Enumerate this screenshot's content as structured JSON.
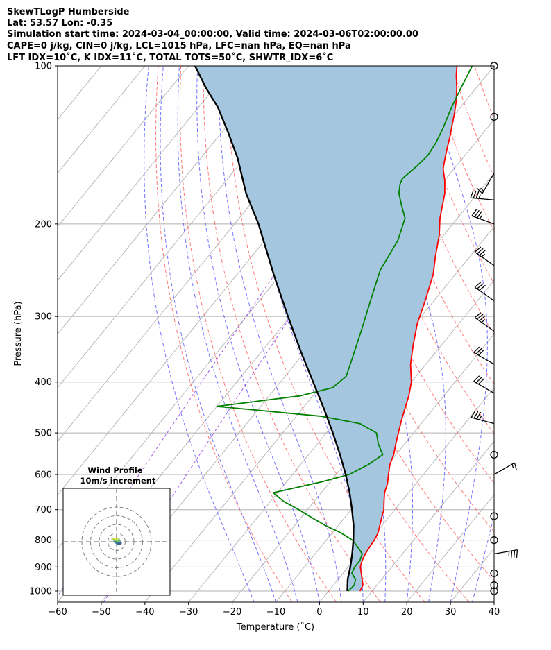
{
  "chart_data": {
    "type": "line",
    "title_lines": [
      "SkewTLogP Humberside",
      "Lat: 53.57   Lon: -0.35",
      "Simulation start time: 2024-03-04_00:00:00, Valid time: 2024-03-06T02:00:00.00",
      "CAPE=0 j/kg, CIN=0 j/kg, LCL=1015 hPa, LFC=nan hPa, EQ=nan hPa",
      "LFT IDX=10˚C, K IDX=11˚C, TOTAL TOTS=50˚C, SHWTR_IDX=6˚C"
    ],
    "xlabel": "Temperature (˚C)",
    "ylabel": "Pressure (hPa)",
    "xlim": [
      -60,
      40
    ],
    "ylim": [
      1050,
      100
    ],
    "x_ticks": [
      -60,
      -50,
      -40,
      -30,
      -20,
      -10,
      0,
      10,
      20,
      30,
      40
    ],
    "y_ticks": [
      100,
      200,
      300,
      400,
      500,
      600,
      700,
      800,
      900,
      1000
    ],
    "skew": 1.0,
    "grid": true,
    "series": [
      {
        "name": "Temperature",
        "color": "#ff0000",
        "points": [
          [
            7.2,
            1000
          ],
          [
            6.8,
            975
          ],
          [
            5.5,
            950
          ],
          [
            4.2,
            925
          ],
          [
            2.8,
            900
          ],
          [
            2.0,
            875
          ],
          [
            1.5,
            850
          ],
          [
            1.2,
            825
          ],
          [
            1.0,
            800
          ],
          [
            0.5,
            775
          ],
          [
            -0.5,
            750
          ],
          [
            -1.5,
            725
          ],
          [
            -2.5,
            700
          ],
          [
            -4.0,
            675
          ],
          [
            -5.5,
            650
          ],
          [
            -6.5,
            625
          ],
          [
            -8.0,
            600
          ],
          [
            -9.5,
            575
          ],
          [
            -10.5,
            550
          ],
          [
            -12.0,
            525
          ],
          [
            -13.5,
            500
          ],
          [
            -15.0,
            475
          ],
          [
            -16.5,
            450
          ],
          [
            -18.0,
            425
          ],
          [
            -20.0,
            400
          ],
          [
            -23.5,
            370
          ],
          [
            -26.5,
            340
          ],
          [
            -29.5,
            310
          ],
          [
            -32.0,
            280
          ],
          [
            -35.0,
            250
          ],
          [
            -38.0,
            230
          ],
          [
            -41.0,
            210
          ],
          [
            -44.0,
            195
          ],
          [
            -47.5,
            175
          ],
          [
            -50.0,
            165
          ],
          [
            -52.5,
            157
          ],
          [
            -54.0,
            150
          ],
          [
            -55.5,
            143
          ],
          [
            -57.0,
            136
          ],
          [
            -58.5,
            130
          ],
          [
            -60.0,
            124
          ],
          [
            -62.0,
            117
          ],
          [
            -64.5,
            110
          ],
          [
            -67.0,
            104
          ],
          [
            -68.5,
            100
          ]
        ]
      },
      {
        "name": "Dewpoint",
        "color": "#008000",
        "points": [
          [
            4.5,
            1000
          ],
          [
            4.8,
            975
          ],
          [
            4.0,
            950
          ],
          [
            2.0,
            925
          ],
          [
            1.5,
            900
          ],
          [
            1.5,
            875
          ],
          [
            0.8,
            850
          ],
          [
            -1.5,
            825
          ],
          [
            -4.0,
            800
          ],
          [
            -8.0,
            775
          ],
          [
            -13.0,
            750
          ],
          [
            -17.5,
            725
          ],
          [
            -22.0,
            700
          ],
          [
            -27.0,
            675
          ],
          [
            -31.0,
            650
          ],
          [
            -22.0,
            620
          ],
          [
            -17.0,
            600
          ],
          [
            -14.5,
            575
          ],
          [
            -13.0,
            550
          ],
          [
            -16.0,
            525
          ],
          [
            -18.5,
            500
          ],
          [
            -24.0,
            480
          ],
          [
            -34.0,
            465
          ],
          [
            -60.0,
            445
          ],
          [
            -43.0,
            425
          ],
          [
            -37.0,
            410
          ],
          [
            -36.0,
            390
          ],
          [
            -38.0,
            360
          ],
          [
            -41.0,
            320
          ],
          [
            -45.0,
            275
          ],
          [
            -48.0,
            245
          ],
          [
            -49.5,
            215
          ],
          [
            -52.0,
            195
          ],
          [
            -55.0,
            185
          ],
          [
            -58.0,
            175
          ],
          [
            -59.5,
            168
          ],
          [
            -60.0,
            164
          ],
          [
            -59.0,
            155
          ],
          [
            -58.5,
            148
          ],
          [
            -59.0,
            140
          ],
          [
            -60.0,
            132
          ],
          [
            -62.0,
            120
          ],
          [
            -63.5,
            110
          ],
          [
            -65.0,
            100
          ]
        ]
      },
      {
        "name": "Parcel Profile",
        "color": "#000000",
        "points": [
          [
            4.3,
            1000
          ],
          [
            2.2,
            950
          ],
          [
            0.5,
            900
          ],
          [
            -1.5,
            850
          ],
          [
            -3.8,
            800
          ],
          [
            -6.5,
            750
          ],
          [
            -9.8,
            700
          ],
          [
            -13.5,
            650
          ],
          [
            -17.8,
            600
          ],
          [
            -22.8,
            550
          ],
          [
            -28.5,
            500
          ],
          [
            -35.0,
            450
          ],
          [
            -42.5,
            400
          ],
          [
            -51.0,
            350
          ],
          [
            -60.5,
            300
          ],
          [
            -71.5,
            250
          ],
          [
            -84.5,
            200
          ],
          [
            -93.0,
            175
          ],
          [
            -101.5,
            150
          ],
          [
            -108.0,
            135
          ],
          [
            -115.5,
            120
          ],
          [
            -122.0,
            110
          ],
          [
            -128.5,
            100
          ]
        ]
      }
    ],
    "dry_adiabats_theta_K": [
      -10,
      0,
      10,
      20,
      30,
      40,
      50,
      60,
      70,
      80,
      90,
      100,
      110,
      120,
      130,
      140,
      150
    ],
    "moist_adiabats_start_C": [
      -15,
      -10,
      -5,
      0,
      5,
      10,
      15,
      20,
      25,
      30,
      35,
      40,
      45,
      50,
      55
    ],
    "wind_barbs": [
      {
        "p": 100,
        "speed_kt": 0,
        "dir_deg": 0
      },
      {
        "p": 125,
        "speed_kt": 0,
        "dir_deg": 0
      },
      {
        "p": 160,
        "speed_kt": 15,
        "dir_deg": 210
      },
      {
        "p": 180,
        "speed_kt": 35,
        "dir_deg": 275
      },
      {
        "p": 200,
        "speed_kt": 35,
        "dir_deg": 290
      },
      {
        "p": 240,
        "speed_kt": 35,
        "dir_deg": 305
      },
      {
        "p": 280,
        "speed_kt": 30,
        "dir_deg": 305
      },
      {
        "p": 320,
        "speed_kt": 35,
        "dir_deg": 305
      },
      {
        "p": 370,
        "speed_kt": 30,
        "dir_deg": 300
      },
      {
        "p": 420,
        "speed_kt": 30,
        "dir_deg": 300
      },
      {
        "p": 480,
        "speed_kt": 35,
        "dir_deg": 285
      },
      {
        "p": 550,
        "speed_kt": 0,
        "dir_deg": 0
      },
      {
        "p": 600,
        "speed_kt": 15,
        "dir_deg": 60
      },
      {
        "p": 720,
        "speed_kt": 0,
        "dir_deg": 0
      },
      {
        "p": 800,
        "speed_kt": 0,
        "dir_deg": 0
      },
      {
        "p": 850,
        "speed_kt": 35,
        "dir_deg": 80
      },
      {
        "p": 925,
        "speed_kt": 0,
        "dir_deg": 0
      },
      {
        "p": 975,
        "speed_kt": 0,
        "dir_deg": 0
      },
      {
        "p": 1000,
        "speed_kt": 0,
        "dir_deg": 0
      }
    ],
    "hodograph": {
      "title_lines": [
        "Wind Profile",
        "10m/s increment"
      ],
      "rings_ms": [
        10,
        20,
        30,
        40
      ],
      "points_ms": [
        [
          2.0,
          -0.6
        ],
        [
          1.6,
          -1.0
        ],
        [
          0.5,
          -0.8
        ],
        [
          -0.6,
          -0.2
        ],
        [
          -1.0,
          0.6
        ],
        [
          0.0,
          1.0
        ],
        [
          1.0,
          1.1
        ],
        [
          1.4,
          0.6
        ],
        [
          1.0,
          0.2
        ],
        [
          -0.8,
          0.9
        ],
        [
          -2.0,
          1.4
        ],
        [
          -1.4,
          1.2
        ],
        [
          -0.4,
          1.4
        ],
        [
          0.6,
          1.0
        ]
      ]
    },
    "colors": {
      "cape_fill": "#a4c6df",
      "dry_adiabat": "#ff5f5f",
      "moist_adiabat": "#5b5bff",
      "mixing_ratio": "#8a2be2",
      "isotherm": "#b0b0b0",
      "grid": "#b0b0b0",
      "hodo_start": "#3a4a9a",
      "hodo_mid": "#3ab08a",
      "hodo_end": "#d8e23a"
    }
  }
}
